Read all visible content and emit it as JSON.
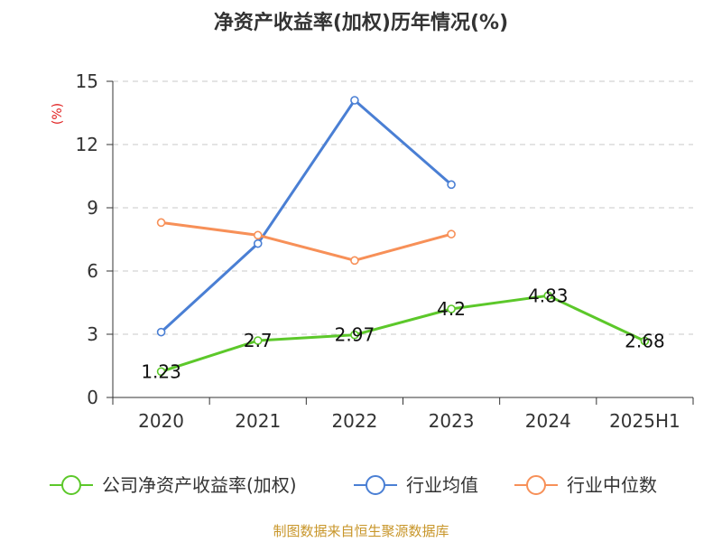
{
  "chart_data": {
    "type": "line",
    "title": "净资产收益率(加权)历年情况(%)",
    "ylabel": "(%)",
    "xlabel": "",
    "categories": [
      "2020",
      "2021",
      "2022",
      "2023",
      "2024",
      "2025H1"
    ],
    "ylim": [
      0,
      15
    ],
    "yticks": [
      0,
      3,
      6,
      9,
      12,
      15
    ],
    "grid": true,
    "legend_position": "bottom",
    "series": [
      {
        "name": "公司净资产收益率(加权)",
        "color": "#5cc82a",
        "values": [
          1.23,
          2.7,
          2.97,
          4.2,
          4.83,
          2.68
        ],
        "labels": [
          "1.23",
          "2.7",
          "2.97",
          "4.2",
          "4.83",
          "2.68"
        ]
      },
      {
        "name": "行业均值",
        "color": "#4a7fd4",
        "values": [
          3.1,
          7.3,
          14.1,
          10.1,
          null,
          null
        ]
      },
      {
        "name": "行业中位数",
        "color": "#f79058",
        "values": [
          8.3,
          7.7,
          6.5,
          7.75,
          null,
          null
        ]
      }
    ],
    "source": "制图数据来自恒生聚源数据库"
  }
}
